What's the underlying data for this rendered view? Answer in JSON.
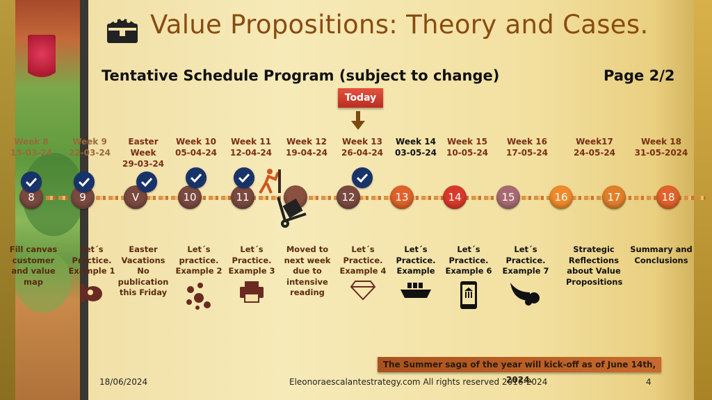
{
  "header": {
    "title": "Value Propositions: Theory and Cases.",
    "subtitle": "Tentative Schedule Program (subject to change)",
    "page": "Page 2/2",
    "title_icon": "treasure-chest-icon"
  },
  "today_label": "Today",
  "weeks": [
    {
      "week": "Week 8",
      "date": "15-03-24",
      "node": "8",
      "done": true,
      "desc": "Fill canvas customer and value map"
    },
    {
      "week": "Week 9",
      "date": "22-03-24",
      "node": "9",
      "done": true,
      "desc": "Let´s Practice. Example 1",
      "icon": "piggy-bank-icon"
    },
    {
      "week": "Easter Week",
      "date": "29-03-24",
      "node": "V",
      "done": true,
      "desc": "Easter Vacations No publication this Friday"
    },
    {
      "week": "Week 10",
      "date": "05-04-24",
      "node": "10",
      "done": true,
      "desc": "Let´s practice. Example 2",
      "icon": "bubbles-icon"
    },
    {
      "week": "Week 11",
      "date": "12-04-24",
      "node": "11",
      "done": true,
      "desc": "Let´s Practice. Example 3",
      "icon": "printer-icon"
    },
    {
      "week": "Week 12",
      "date": "19-04-24",
      "node": "",
      "done": false,
      "desc": "Moved to next week due to intensive reading",
      "icon": "hand-truck-icon"
    },
    {
      "week": "Week 13",
      "date": "26-04-24",
      "node": "12",
      "done": true,
      "desc": "Let´s Practice. Example 4",
      "icon": "diamond-icon"
    },
    {
      "week": "Week 14",
      "date": "03-05-24",
      "node": "13",
      "done": false,
      "desc": "Let´s Practice. Example",
      "icon": "ship-icon"
    },
    {
      "week": "Week 15",
      "date": "10-05-24",
      "node": "14",
      "done": false,
      "desc": "Let´s Practice. Example 6",
      "icon": "mobile-bank-icon"
    },
    {
      "week": "Week 16",
      "date": "17-05-24",
      "node": "15",
      "done": false,
      "desc": "Let´s Practice. Example 7",
      "icon": "cornucopia-icon"
    },
    {
      "week": "Week17",
      "date": "24-05-24",
      "node": "16",
      "done": false,
      "desc": "Strategic Reflections about Value Propositions"
    },
    {
      "week": "Week 18",
      "date": "31-05-2024",
      "node": "17",
      "done": false,
      "desc": "Summary and Conclusions"
    },
    {
      "week": "",
      "date": "",
      "node": "18",
      "done": false,
      "desc": ""
    }
  ],
  "banner": "The Summer saga of the year will kick-off as of June 14th, 2024.",
  "footer": {
    "date": "18/06/2024",
    "site": "Eleonoraescalantestrategy.com  All rights reserved 2016-2024",
    "slide_number": "4"
  },
  "colors": {
    "title": "#8a4b10",
    "check": "#18336a",
    "node_done": "#7a4a40",
    "node_future": "#e0622a"
  }
}
